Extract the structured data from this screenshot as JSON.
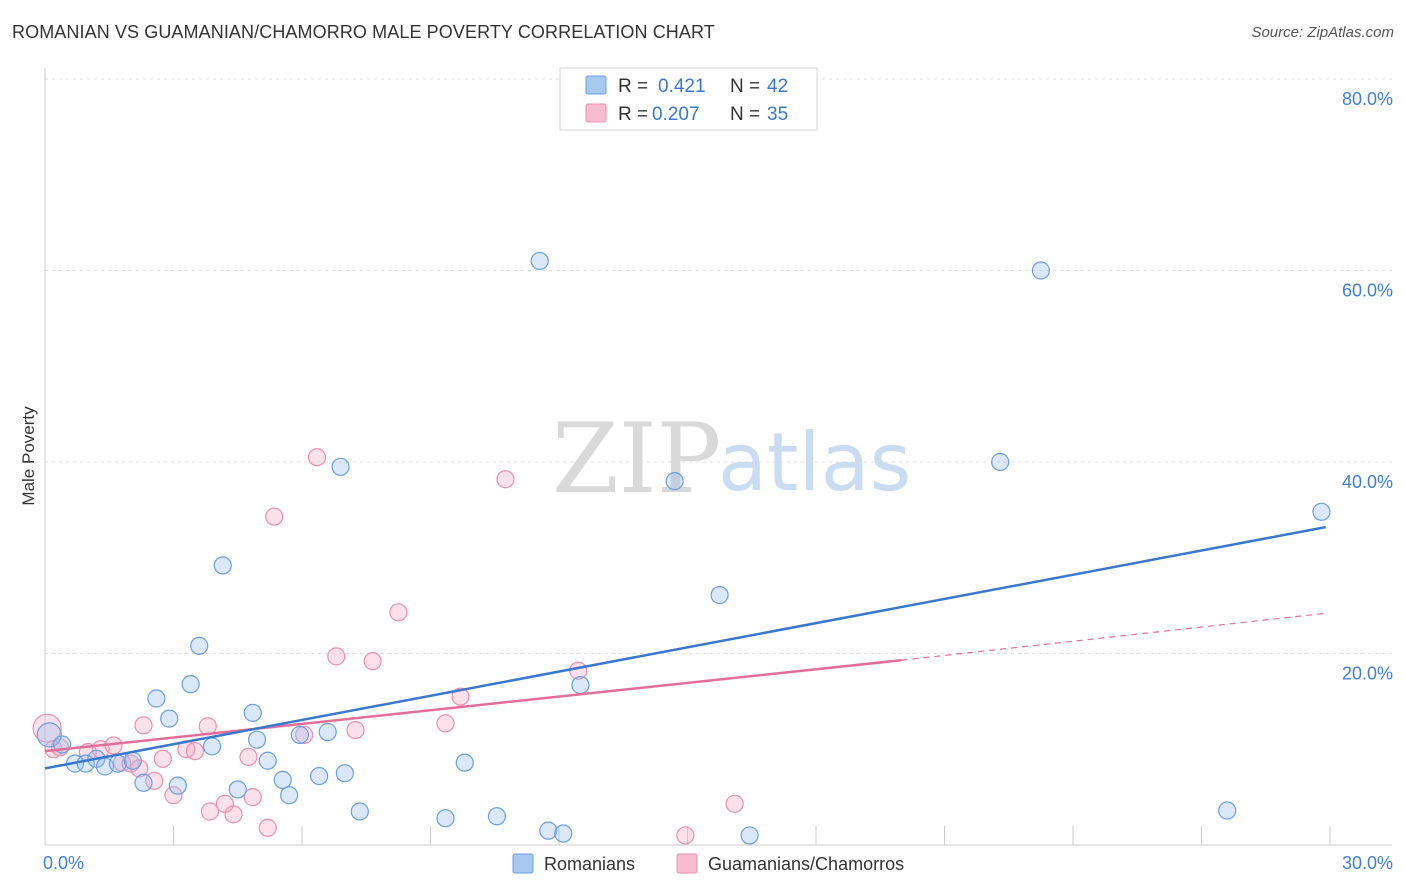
{
  "title": "ROMANIAN VS GUAMANIAN/CHAMORRO MALE POVERTY CORRELATION CHART",
  "source": "Source: ZipAtlas.com",
  "watermark": {
    "zip": "ZIP",
    "atlas": "atlas"
  },
  "legend": {
    "r_label": "R =",
    "n_label": "N =",
    "rows": [
      {
        "r": "0.421",
        "n": "42",
        "color": "#a8c8f0"
      },
      {
        "r": "0.207",
        "n": "35",
        "color": "#f7bcd0"
      }
    ]
  },
  "bottom_legend": [
    {
      "label": "Romanians",
      "color": "#a8c8f0"
    },
    {
      "label": "Guamanians/Chamorros",
      "color": "#f7bcd0"
    }
  ],
  "chart_data": {
    "type": "scatter",
    "ylabel": "Male Poverty",
    "xlabel": "",
    "xlim": [
      0,
      30
    ],
    "ylim": [
      0,
      82
    ],
    "x_tick_labels": [
      "0.0%",
      "30.0%"
    ],
    "y_ticks": [
      20,
      40,
      60,
      80
    ],
    "y_tick_labels": [
      "20.0%",
      "40.0%",
      "60.0%",
      "80.0%"
    ],
    "grid": true,
    "colors": {
      "Romanians": "#3a78d0",
      "Guamanians/Chamorros": "#e46e9a"
    },
    "series": [
      {
        "name": "Romanians",
        "points": [
          [
            0.1,
            11.5
          ],
          [
            0.4,
            10.5
          ],
          [
            0.7,
            8.5
          ],
          [
            0.95,
            8.5
          ],
          [
            1.2,
            9.0
          ],
          [
            1.4,
            8.2
          ],
          [
            1.7,
            8.5
          ],
          [
            2.05,
            8.8
          ],
          [
            2.3,
            6.5
          ],
          [
            2.6,
            15.3
          ],
          [
            2.9,
            13.2
          ],
          [
            3.1,
            6.2
          ],
          [
            3.4,
            16.8
          ],
          [
            3.6,
            20.8
          ],
          [
            3.9,
            10.3
          ],
          [
            4.15,
            29.2
          ],
          [
            4.5,
            5.8
          ],
          [
            4.85,
            13.8
          ],
          [
            4.95,
            11.0
          ],
          [
            5.2,
            8.8
          ],
          [
            5.55,
            6.8
          ],
          [
            5.7,
            5.2
          ],
          [
            5.95,
            11.5
          ],
          [
            6.4,
            7.2
          ],
          [
            6.6,
            11.8
          ],
          [
            6.9,
            39.5
          ],
          [
            7.0,
            7.5
          ],
          [
            7.35,
            3.5
          ],
          [
            9.35,
            2.8
          ],
          [
            9.8,
            8.6
          ],
          [
            10.55,
            3.0
          ],
          [
            11.55,
            61.0
          ],
          [
            11.75,
            1.5
          ],
          [
            12.1,
            1.2
          ],
          [
            12.5,
            16.7
          ],
          [
            14.7,
            38.0
          ],
          [
            15.75,
            26.1
          ],
          [
            16.45,
            1.0
          ],
          [
            22.3,
            40.0
          ],
          [
            23.25,
            60.0
          ],
          [
            27.6,
            3.6
          ],
          [
            29.8,
            34.8
          ]
        ],
        "trend": {
          "x": [
            0,
            29.9
          ],
          "y": [
            8.0,
            33.2
          ]
        }
      },
      {
        "name": "Guamanians/Chamorros",
        "points": [
          [
            0.05,
            12.2
          ],
          [
            0.2,
            10.0
          ],
          [
            0.35,
            10.2
          ],
          [
            1.0,
            9.7
          ],
          [
            1.3,
            10.0
          ],
          [
            1.6,
            10.4
          ],
          [
            1.8,
            8.6
          ],
          [
            2.0,
            8.5
          ],
          [
            2.2,
            8.0
          ],
          [
            2.3,
            12.5
          ],
          [
            2.55,
            6.7
          ],
          [
            2.75,
            9.0
          ],
          [
            3.0,
            5.2
          ],
          [
            3.3,
            10.0
          ],
          [
            3.5,
            9.8
          ],
          [
            3.8,
            12.4
          ],
          [
            3.85,
            3.5
          ],
          [
            4.2,
            4.3
          ],
          [
            4.4,
            3.2
          ],
          [
            4.75,
            9.2
          ],
          [
            4.85,
            5.0
          ],
          [
            5.2,
            1.8
          ],
          [
            5.35,
            34.3
          ],
          [
            6.05,
            11.5
          ],
          [
            6.35,
            40.5
          ],
          [
            6.8,
            19.7
          ],
          [
            7.25,
            12.0
          ],
          [
            7.65,
            19.2
          ],
          [
            8.25,
            24.3
          ],
          [
            9.35,
            12.7
          ],
          [
            9.7,
            15.5
          ],
          [
            10.75,
            38.2
          ],
          [
            12.45,
            18.2
          ],
          [
            14.95,
            1.0
          ],
          [
            16.1,
            4.3
          ]
        ],
        "trend_solid": {
          "x": [
            0,
            20.0
          ],
          "y": [
            9.8,
            19.3
          ]
        },
        "trend_dashed": {
          "x": [
            20.0,
            29.9
          ],
          "y": [
            19.3,
            24.2
          ]
        }
      }
    ]
  }
}
